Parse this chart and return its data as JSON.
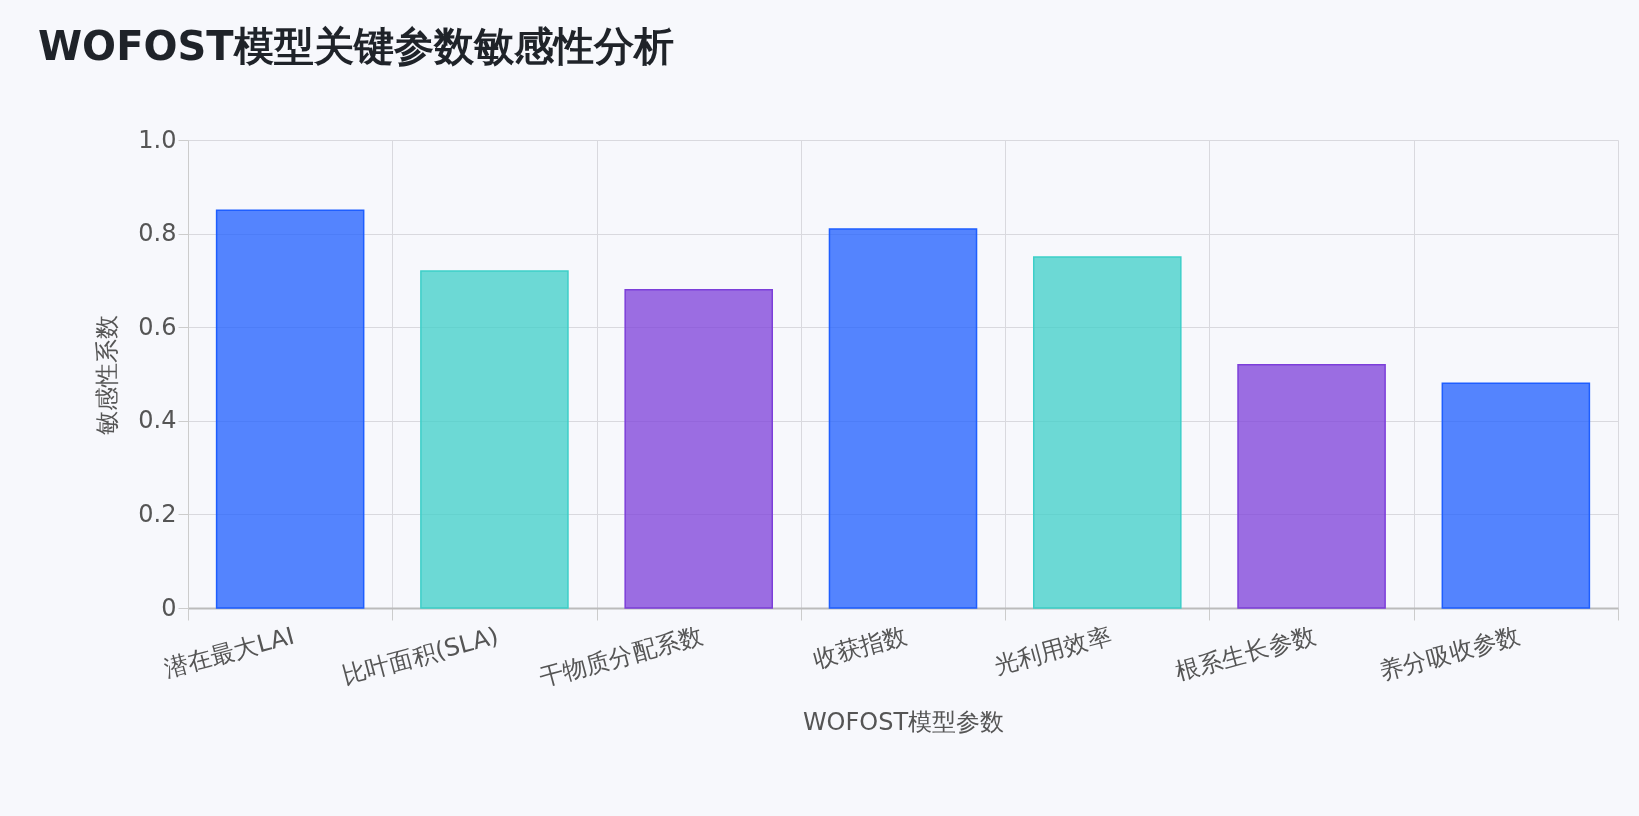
{
  "chart_data": {
    "type": "bar",
    "title": "WOFOST模型关键参数敏感性分析",
    "xlabel": "WOFOST模型参数",
    "ylabel": "敏感性系数",
    "categories": [
      "潜在最大LAI",
      "比叶面积(SLA)",
      "干物质分配系数",
      "收获指数",
      "光利用效率",
      "根系生长参数",
      "养分吸收参数"
    ],
    "values": [
      0.85,
      0.72,
      0.68,
      0.81,
      0.75,
      0.52,
      0.48
    ],
    "colors": [
      "#1e5eff",
      "#3dcfc8",
      "#7c3fd9",
      "#1e5eff",
      "#3dcfc8",
      "#7c3fd9",
      "#1e5eff"
    ],
    "ylim": [
      0,
      1
    ],
    "yticks": [
      0,
      0.2,
      0.4,
      0.6,
      0.8,
      {
        "value": 1,
        "label": "1.0"
      }
    ],
    "grid": true
  }
}
